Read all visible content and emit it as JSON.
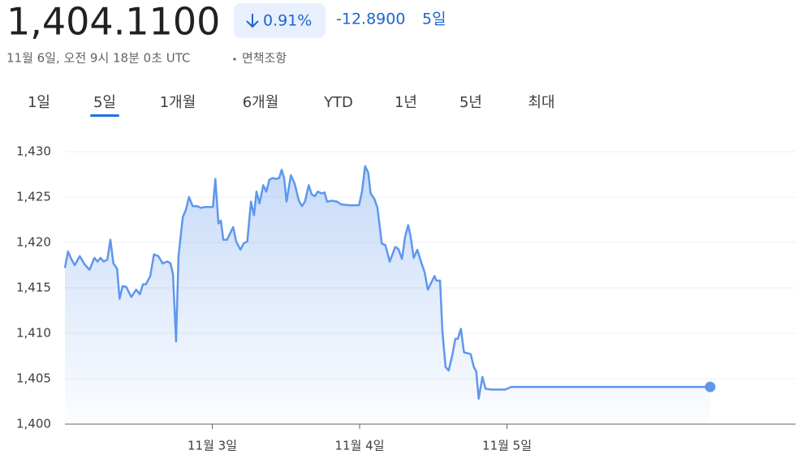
{
  "header": {
    "price": "1,404.1100",
    "change_percent": "0.91%",
    "change": "-12.8900",
    "period": "5일",
    "timestamp": "11월 6일, 오전 9시 18분 0초 UTC",
    "disclaimer": "면책조항"
  },
  "tabs": [
    "1일",
    "5일",
    "1개월",
    "6개월",
    "YTD",
    "1년",
    "5년",
    "최대"
  ],
  "selected_tab": 1,
  "chart_data": {
    "type": "line",
    "x": [
      0,
      0.5,
      1.1,
      1.6,
      2.4,
      3.2,
      4.0,
      4.8,
      5.3,
      5.8,
      6.3,
      6.9,
      7.4,
      7.9,
      8.5,
      8.9,
      9.4,
      10.0,
      10.8,
      11.6,
      12.2,
      12.7,
      13.2,
      13.9,
      14.5,
      15.2,
      15.9,
      16.7,
      17.2,
      17.6,
      18.1,
      18.5,
      19.2,
      19.7,
      20.2,
      20.8,
      21.5,
      22.2,
      22.7,
      23.3,
      24.1,
      24.5,
      25.0,
      25.4,
      25.8,
      26.4,
      27.4,
      27.9,
      28.6,
      29.1,
      29.7,
      30.3,
      30.8,
      31.2,
      31.7,
      32.3,
      32.8,
      33.3,
      33.8,
      34.4,
      34.9,
      35.3,
      35.7,
      36.1,
      36.8,
      37.4,
      38.1,
      38.6,
      39.1,
      39.7,
      40.2,
      40.7,
      41.2,
      41.8,
      42.3,
      42.7,
      43.6,
      44.3,
      45.0,
      46.3,
      47.9,
      48.4,
      48.9,
      49.4,
      49.8,
      50.4,
      50.9,
      51.6,
      52.2,
      52.9,
      53.8,
      54.3,
      54.9,
      55.4,
      55.9,
      56.3,
      56.8,
      57.4,
      57.9,
      58.6,
      59.1,
      59.6,
      60.2,
      60.5,
      61.1,
      61.5,
      62.0,
      62.5,
      63.1,
      63.6,
      64.0,
      64.5,
      65.0,
      65.6,
      66.1,
      66.6,
      67.0,
      67.4,
      68.0,
      68.5,
      69.4,
      71.7,
      72.7,
      105.1
    ],
    "series": [
      {
        "color": "#5f97ec",
        "values": [
          1417.2,
          1419.0,
          1418.1,
          1417.5,
          1418.5,
          1417.6,
          1417.0,
          1418.3,
          1417.9,
          1418.3,
          1417.9,
          1418.1,
          1420.3,
          1417.7,
          1417.1,
          1413.8,
          1415.2,
          1415.1,
          1414.0,
          1414.8,
          1414.3,
          1415.4,
          1415.4,
          1416.3,
          1418.7,
          1418.5,
          1417.7,
          1417.9,
          1417.7,
          1416.5,
          1409.1,
          1418.5,
          1422.8,
          1423.6,
          1425.0,
          1424.0,
          1424.0,
          1423.8,
          1423.9,
          1423.9,
          1423.9,
          1427.0,
          1422.1,
          1422.4,
          1420.3,
          1420.3,
          1421.7,
          1420.1,
          1419.2,
          1419.9,
          1420.1,
          1424.5,
          1423.0,
          1425.6,
          1424.3,
          1426.3,
          1425.6,
          1426.9,
          1427.1,
          1427.0,
          1427.1,
          1428.0,
          1427.1,
          1424.5,
          1427.4,
          1426.5,
          1424.6,
          1424.0,
          1424.5,
          1426.3,
          1425.3,
          1425.1,
          1425.6,
          1425.4,
          1425.5,
          1424.5,
          1424.6,
          1424.5,
          1424.2,
          1424.1,
          1424.1,
          1425.7,
          1428.4,
          1427.7,
          1425.4,
          1424.8,
          1423.8,
          1419.9,
          1419.7,
          1417.9,
          1419.5,
          1419.3,
          1418.2,
          1420.6,
          1421.9,
          1420.7,
          1418.3,
          1419.2,
          1418.1,
          1416.7,
          1414.8,
          1415.5,
          1416.3,
          1415.8,
          1415.8,
          1410.1,
          1406.3,
          1405.9,
          1407.6,
          1409.4,
          1409.4,
          1410.5,
          1407.9,
          1407.8,
          1407.7,
          1406.3,
          1405.8,
          1402.8,
          1405.2,
          1403.9,
          1403.8,
          1403.8,
          1404.1,
          1404.1
        ]
      }
    ],
    "xlim": [
      0,
      119
    ],
    "xticks": [
      {
        "value": 24,
        "label": "11월 3일"
      },
      {
        "value": 48,
        "label": "11월 4일"
      },
      {
        "value": 72,
        "label": "11월 5일"
      }
    ],
    "ylim": [
      1400,
      1430
    ],
    "yticks": [
      {
        "value": 1400,
        "label": "1,400"
      },
      {
        "value": 1405,
        "label": "1,405"
      },
      {
        "value": 1410,
        "label": "1,410"
      },
      {
        "value": 1415,
        "label": "1,415"
      },
      {
        "value": 1420,
        "label": "1,420"
      },
      {
        "value": 1425,
        "label": "1,425"
      },
      {
        "value": 1430,
        "label": "1,430"
      }
    ],
    "grid": true
  }
}
